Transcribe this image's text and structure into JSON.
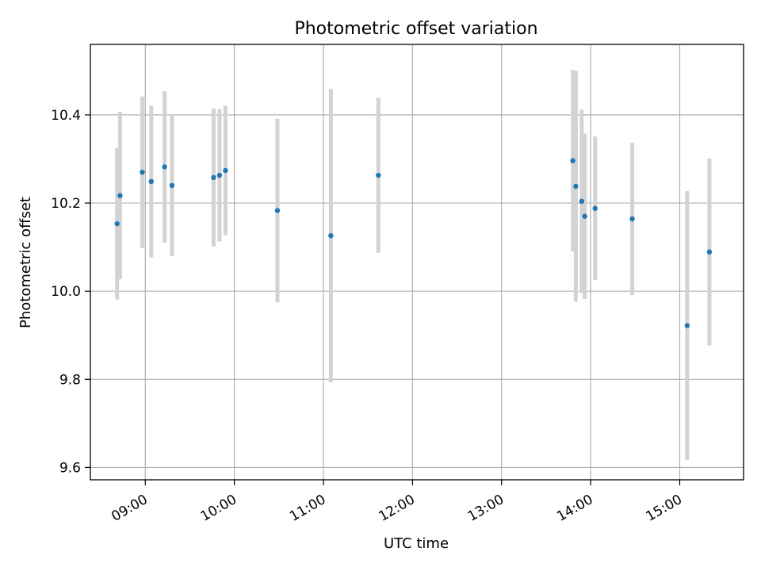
{
  "chart_data": {
    "type": "scatter",
    "title": "Photometric offset variation",
    "xlabel": "UTC time",
    "ylabel": "Photometric offset",
    "xlim": [
      "08:23",
      "15:43"
    ],
    "ylim": [
      9.572,
      10.56
    ],
    "x_ticks": [
      "09:00",
      "10:00",
      "11:00",
      "12:00",
      "13:00",
      "14:00",
      "15:00"
    ],
    "y_ticks": [
      9.6,
      9.8,
      10.0,
      10.2,
      10.4
    ],
    "y_tick_labels": [
      "9.6",
      "9.8",
      "10.0",
      "10.2",
      "10.4"
    ],
    "grid": true,
    "legend": "none",
    "marker_color": "#1f77b4",
    "errorbar_color": "#d3d3d3",
    "points": [
      {
        "x": "08:41",
        "y": 10.153,
        "yerr": 0.172
      },
      {
        "x": "08:43",
        "y": 10.217,
        "yerr": 0.19
      },
      {
        "x": "08:58",
        "y": 10.27,
        "yerr": 0.172
      },
      {
        "x": "09:04",
        "y": 10.249,
        "yerr": 0.172
      },
      {
        "x": "09:13",
        "y": 10.282,
        "yerr": 0.172
      },
      {
        "x": "09:18",
        "y": 10.24,
        "yerr": 0.16
      },
      {
        "x": "09:46",
        "y": 10.258,
        "yerr": 0.157
      },
      {
        "x": "09:50",
        "y": 10.263,
        "yerr": 0.15
      },
      {
        "x": "09:54",
        "y": 10.274,
        "yerr": 0.147
      },
      {
        "x": "10:29",
        "y": 10.183,
        "yerr": 0.208
      },
      {
        "x": "11:05",
        "y": 10.126,
        "yerr": 0.333
      },
      {
        "x": "11:37",
        "y": 10.263,
        "yerr": 0.176
      },
      {
        "x": "13:48",
        "y": 10.296,
        "yerr": 0.206
      },
      {
        "x": "13:50",
        "y": 10.238,
        "yerr": 0.262
      },
      {
        "x": "13:54",
        "y": 10.204,
        "yerr": 0.208
      },
      {
        "x": "13:56",
        "y": 10.17,
        "yerr": 0.188
      },
      {
        "x": "14:03",
        "y": 10.188,
        "yerr": 0.163
      },
      {
        "x": "14:28",
        "y": 10.164,
        "yerr": 0.173
      },
      {
        "x": "15:05",
        "y": 9.922,
        "yerr": 0.305
      },
      {
        "x": "15:20",
        "y": 10.089,
        "yerr": 0.212
      }
    ]
  }
}
